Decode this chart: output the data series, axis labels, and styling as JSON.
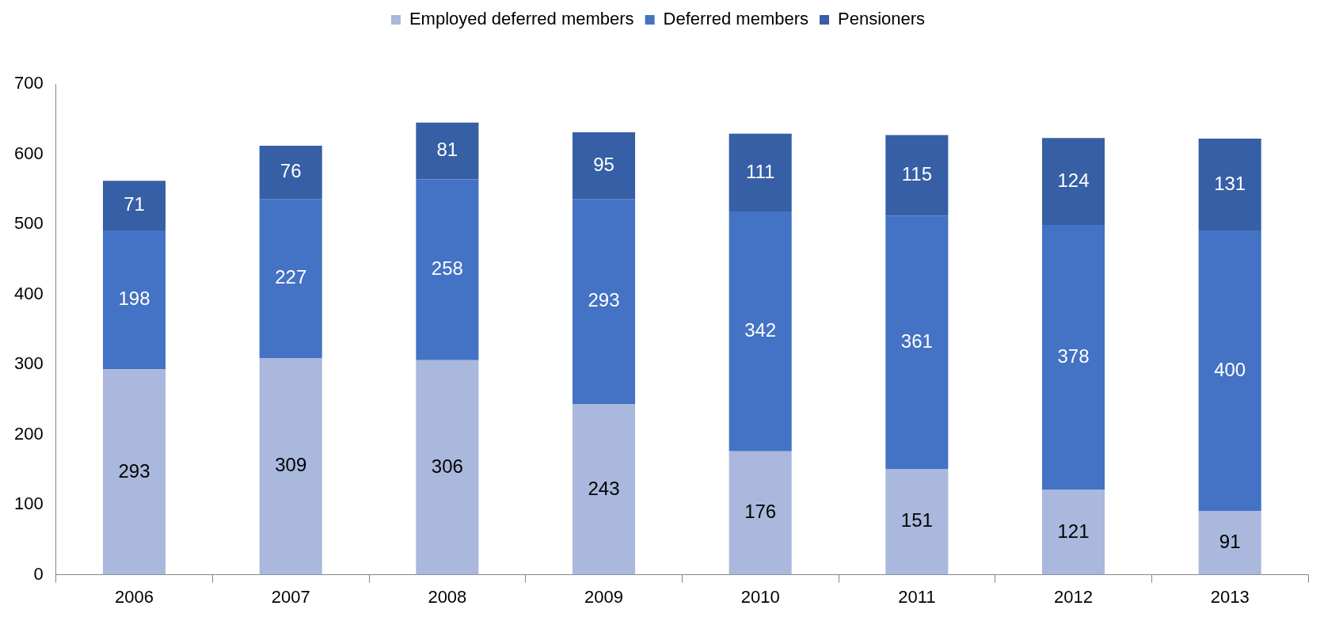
{
  "chart_data": {
    "type": "bar",
    "stacked": true,
    "categories": [
      "2006",
      "2007",
      "2008",
      "2009",
      "2010",
      "2011",
      "2012",
      "2013"
    ],
    "series": [
      {
        "name": "Employed deferred members",
        "color": "#a9b8dc",
        "values": [
          293,
          309,
          306,
          243,
          176,
          151,
          121,
          91
        ]
      },
      {
        "name": "Deferred members",
        "color": "#4472c4",
        "values": [
          198,
          227,
          258,
          293,
          342,
          361,
          378,
          400
        ]
      },
      {
        "name": "Pensioners",
        "color": "#365fa5",
        "values": [
          71,
          76,
          81,
          95,
          111,
          115,
          124,
          131
        ]
      }
    ],
    "ylim": [
      0,
      700
    ],
    "yticks": [
      0,
      100,
      200,
      300,
      400,
      500,
      600,
      700
    ],
    "grid": false,
    "legend": "top",
    "data_labels": true
  }
}
